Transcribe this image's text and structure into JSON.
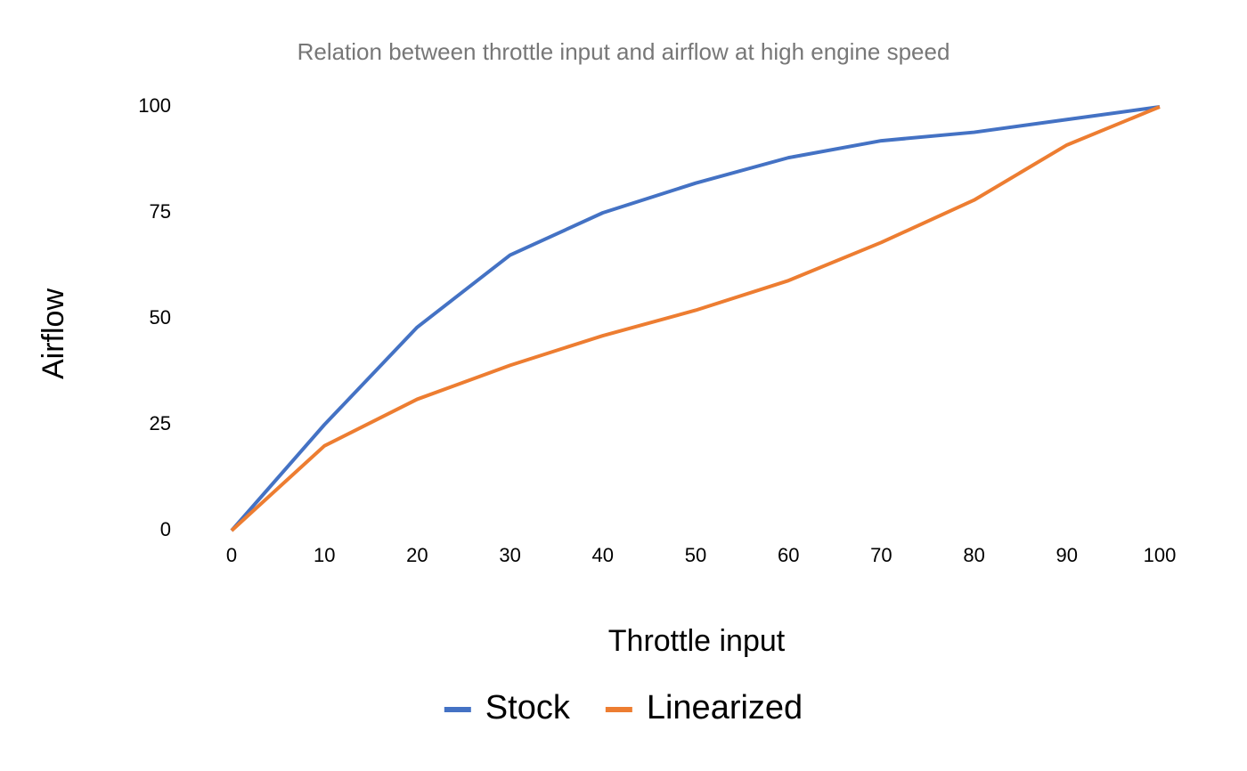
{
  "chart_data": {
    "type": "line",
    "title": "Relation between throttle input and airflow at high engine speed",
    "x_label": "Throttle input",
    "y_label": "Airflow",
    "x": [
      0,
      10,
      20,
      30,
      40,
      50,
      60,
      70,
      80,
      90,
      100
    ],
    "series": [
      {
        "name": "Stock",
        "color": "#4472c4",
        "values": [
          0,
          25,
          48,
          65,
          75,
          82,
          88,
          92,
          94,
          97,
          100
        ]
      },
      {
        "name": "Linearized",
        "color": "#ed7d31",
        "values": [
          0,
          20,
          31,
          39,
          46,
          52,
          59,
          68,
          78,
          91,
          100
        ]
      }
    ],
    "xlim": [
      0,
      100
    ],
    "xticks": [
      0,
      10,
      20,
      30,
      40,
      50,
      60,
      70,
      80,
      90,
      100
    ],
    "ylim": [
      0,
      100
    ],
    "yticks": [
      0,
      25,
      50,
      75,
      100
    ],
    "grid": false,
    "legend": "bottom"
  }
}
